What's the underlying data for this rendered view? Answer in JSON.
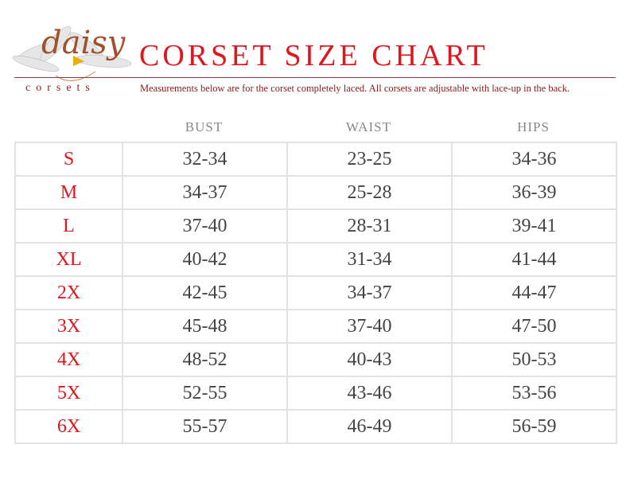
{
  "logo": {
    "word": "daisy",
    "sub": "corsets"
  },
  "title": "CORSET SIZE CHART",
  "subtitle": "Measurements below are for the corset completely laced.  All corsets are adjustable with lace-up in the back.",
  "columns": [
    "BUST",
    "WAIST",
    "HIPS"
  ],
  "rows": [
    {
      "size": "S",
      "bust": "32-34",
      "waist": "23-25",
      "hips": "34-36"
    },
    {
      "size": "M",
      "bust": "34-37",
      "waist": "25-28",
      "hips": "36-39"
    },
    {
      "size": "L",
      "bust": "37-40",
      "waist": "28-31",
      "hips": "39-41"
    },
    {
      "size": "XL",
      "bust": "40-42",
      "waist": "31-34",
      "hips": "41-44"
    },
    {
      "size": "2X",
      "bust": "42-45",
      "waist": "34-37",
      "hips": "44-47"
    },
    {
      "size": "3X",
      "bust": "45-48",
      "waist": "37-40",
      "hips": "47-50"
    },
    {
      "size": "4X",
      "bust": "48-52",
      "waist": "40-43",
      "hips": "50-53"
    },
    {
      "size": "5X",
      "bust": "52-55",
      "waist": "43-46",
      "hips": "53-56"
    },
    {
      "size": "6X",
      "bust": "55-57",
      "waist": "46-49",
      "hips": "56-59"
    }
  ],
  "colors": {
    "accent": "#e0161e",
    "brand": "#8b1a1a",
    "text": "#444444",
    "grid": "#e2e2e2"
  }
}
